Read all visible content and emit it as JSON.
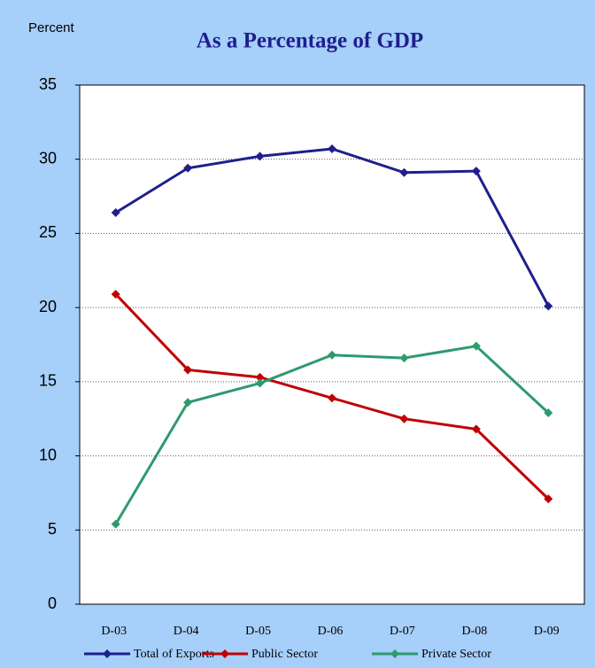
{
  "chart_data": {
    "type": "line",
    "title": "As a Percentage of GDP",
    "y_axis_label": "Percent",
    "categories": [
      "D-03",
      "D-04",
      "D-05",
      "D-06",
      "D-07",
      "D-08",
      "D-09"
    ],
    "series": [
      {
        "name": "Total of Exports",
        "color": "#1f1f8c",
        "values": [
          26.4,
          29.4,
          30.2,
          30.7,
          29.1,
          29.2,
          20.1
        ]
      },
      {
        "name": "Public Sector",
        "color": "#c00000",
        "values": [
          20.9,
          15.8,
          15.3,
          13.9,
          12.5,
          11.8,
          7.1
        ]
      },
      {
        "name": "Private Sector",
        "color": "#2e9a6e",
        "values": [
          5.4,
          13.6,
          14.9,
          16.8,
          16.6,
          17.4,
          12.9
        ]
      }
    ],
    "ylim": [
      0,
      35
    ],
    "yticks": [
      0,
      5,
      10,
      15,
      20,
      25,
      30,
      35
    ],
    "grid": true,
    "legend": "bottom"
  }
}
